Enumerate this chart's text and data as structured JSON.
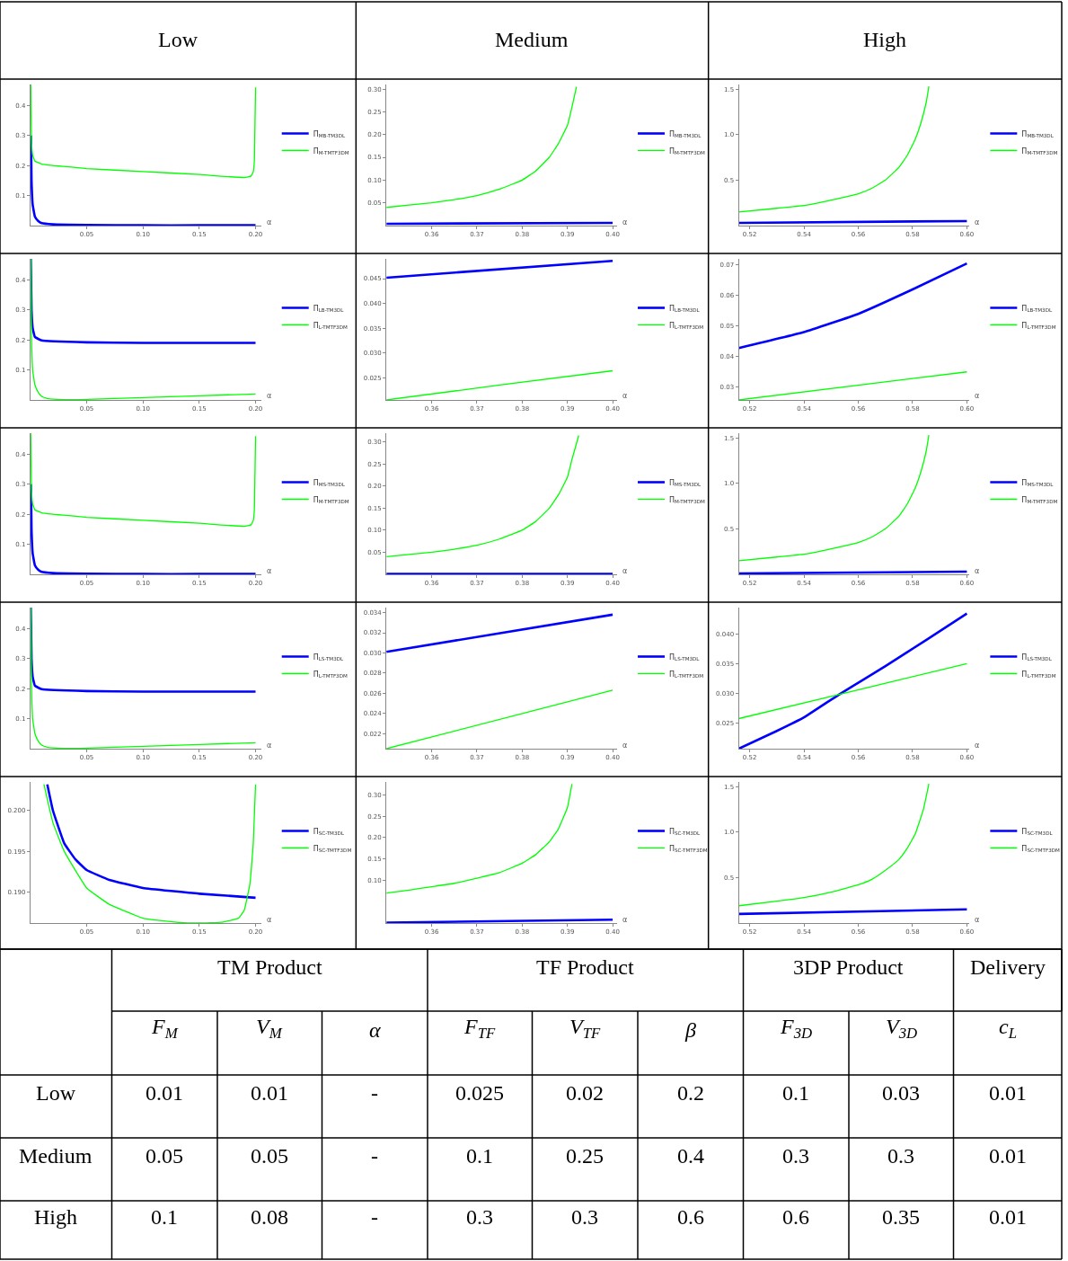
{
  "chart_data": [
    {
      "type": "line",
      "title": "Low",
      "xlabel": "α",
      "legend": "right",
      "xlim": [
        0,
        0.205
      ],
      "ylim": [
        0,
        0.47
      ],
      "xticks": [
        0.05,
        {
          "value": 0.1,
          "label": "0.10"
        },
        0.15,
        {
          "value": 0.2,
          "label": "0.20"
        }
      ],
      "yticks": [
        0.1,
        0.2,
        0.3,
        0.4
      ],
      "series": [
        {
          "name": "Π$_{MB-TM3DL}$",
          "color": "#0000ff",
          "x": [
            0.0005,
            0.001,
            0.002,
            0.004,
            0.007,
            0.01,
            0.02,
            0.05,
            0.1,
            0.15,
            0.2
          ],
          "values": [
            0.3,
            0.15,
            0.07,
            0.03,
            0.015,
            0.008,
            0.004,
            0.002,
            0.001,
            0.001,
            0.001
          ]
        },
        {
          "name": "Π$_{M-TMTF3DM}$",
          "color": "#00ff00",
          "x": [
            0.0003,
            0.001,
            0.002,
            0.004,
            0.01,
            0.05,
            0.1,
            0.15,
            0.19,
            0.196,
            0.198,
            0.199,
            0.2
          ],
          "values": [
            0.47,
            0.28,
            0.235,
            0.215,
            0.205,
            0.19,
            0.18,
            0.17,
            0.16,
            0.165,
            0.18,
            0.22,
            0.46
          ]
        }
      ]
    },
    {
      "type": "line",
      "title": "Medium",
      "xlabel": "α",
      "legend": "right",
      "xlim": [
        0.35,
        0.401
      ],
      "ylim": [
        0,
        0.31
      ],
      "xticks": [
        0.36,
        0.37,
        0.38,
        0.39,
        {
          "value": 0.4,
          "label": "0.40"
        }
      ],
      "yticks": [
        0.05,
        {
          "value": 0.1,
          "label": "0.10"
        },
        0.15,
        {
          "value": 0.2,
          "label": "0.20"
        },
        0.25,
        {
          "value": 0.3,
          "label": "0.30"
        }
      ],
      "series": [
        {
          "name": "Π$_{MB-TM3DL}$",
          "color": "#0000ff",
          "x": [
            0.35,
            0.4
          ],
          "values": [
            0.004,
            0.006
          ]
        },
        {
          "name": "Π$_{M-TMTF3DM}$",
          "color": "#00ff00",
          "x": [
            0.35,
            0.355,
            0.36,
            0.365,
            0.37,
            0.375,
            0.38,
            0.383,
            0.386,
            0.388,
            0.39,
            0.391,
            0.392
          ],
          "values": [
            0.04,
            0.045,
            0.05,
            0.057,
            0.066,
            0.08,
            0.1,
            0.12,
            0.15,
            0.18,
            0.22,
            0.26,
            0.305
          ]
        }
      ]
    },
    {
      "type": "line",
      "title": "High",
      "xlabel": "α",
      "legend": "right",
      "xlim": [
        0.516,
        0.601
      ],
      "ylim": [
        0,
        1.55
      ],
      "xticks": [
        0.52,
        0.54,
        0.56,
        0.58,
        {
          "value": 0.6,
          "label": "0.60"
        }
      ],
      "yticks": [
        0.5,
        {
          "value": 1,
          "label": "1.0"
        },
        1.5
      ],
      "series": [
        {
          "name": "Π$_{MB-TM3DL}$",
          "color": "#0000ff",
          "x": [
            0.516,
            0.6
          ],
          "values": [
            0.03,
            0.05
          ]
        },
        {
          "name": "Π$_{M-TMTF3DM}$",
          "color": "#00ff00",
          "x": [
            0.516,
            0.53,
            0.54,
            0.55,
            0.56,
            0.565,
            0.57,
            0.575,
            0.578,
            0.581,
            0.583,
            0.585,
            0.586
          ],
          "values": [
            0.15,
            0.19,
            0.22,
            0.28,
            0.35,
            0.41,
            0.5,
            0.64,
            0.77,
            0.95,
            1.12,
            1.35,
            1.53
          ]
        }
      ]
    },
    {
      "type": "line",
      "xlabel": "α",
      "legend": "right",
      "xlim": [
        0,
        0.205
      ],
      "ylim": [
        0,
        0.47
      ],
      "xticks": [
        0.05,
        {
          "value": 0.1,
          "label": "0.10"
        },
        0.15,
        {
          "value": 0.2,
          "label": "0.20"
        }
      ],
      "yticks": [
        0.1,
        0.2,
        0.3,
        0.4
      ],
      "series": [
        {
          "name": "Π$_{LB-TM3DL}$",
          "color": "#0000ff",
          "x": [
            0.0003,
            0.001,
            0.002,
            0.004,
            0.01,
            0.05,
            0.1,
            0.15,
            0.2
          ],
          "values": [
            0.47,
            0.3,
            0.24,
            0.21,
            0.198,
            0.192,
            0.19,
            0.19,
            0.19
          ]
        },
        {
          "name": "Π$_{L-TMTF3DM}$",
          "color": "#00ff00",
          "x": [
            0.0003,
            0.001,
            0.002,
            0.004,
            0.007,
            0.01,
            0.015,
            0.03,
            0.05,
            0.1,
            0.15,
            0.2
          ],
          "values": [
            0.47,
            0.2,
            0.1,
            0.05,
            0.025,
            0.012,
            0.005,
            0.001,
            0.002,
            0.008,
            0.014,
            0.02
          ]
        }
      ]
    },
    {
      "type": "line",
      "xlabel": "α",
      "legend": "right",
      "xlim": [
        0.35,
        0.401
      ],
      "ylim": [
        0.0205,
        0.049
      ],
      "xticks": [
        0.36,
        0.37,
        0.38,
        0.39,
        {
          "value": 0.4,
          "label": "0.40"
        }
      ],
      "yticks": [
        0.025,
        {
          "value": 0.03,
          "label": "0.030"
        },
        0.035,
        {
          "value": 0.04,
          "label": "0.040"
        },
        0.045
      ],
      "series": [
        {
          "name": "Π$_{LB-TM3DL}$",
          "color": "#0000ff",
          "x": [
            0.35,
            0.4
          ],
          "values": [
            0.0452,
            0.0486
          ]
        },
        {
          "name": "Π$_{L-TMTF3DM}$",
          "color": "#00ff00",
          "x": [
            0.35,
            0.375,
            0.4
          ],
          "values": [
            0.0205,
            0.0235,
            0.0264
          ]
        }
      ]
    },
    {
      "type": "line",
      "xlabel": "α",
      "legend": "right",
      "xlim": [
        0.516,
        0.601
      ],
      "ylim": [
        0.0258,
        0.072
      ],
      "xticks": [
        0.52,
        0.54,
        0.56,
        0.58,
        {
          "value": 0.6,
          "label": "0.60"
        }
      ],
      "yticks": [
        0.03,
        0.04,
        0.05,
        0.06,
        0.07
      ],
      "series": [
        {
          "name": "Π$_{LB-TM3DL}$",
          "color": "#0000ff",
          "x": [
            0.516,
            0.54,
            0.56,
            0.58,
            0.6
          ],
          "values": [
            0.0428,
            0.048,
            0.054,
            0.062,
            0.0705
          ]
        },
        {
          "name": "Π$_{L-TMTF3DM}$",
          "color": "#00ff00",
          "x": [
            0.516,
            0.6
          ],
          "values": [
            0.0258,
            0.035
          ]
        }
      ]
    },
    {
      "type": "line",
      "xlabel": "α",
      "legend": "right",
      "xlim": [
        0,
        0.205
      ],
      "ylim": [
        0,
        0.47
      ],
      "xticks": [
        0.05,
        {
          "value": 0.1,
          "label": "0.10"
        },
        0.15,
        {
          "value": 0.2,
          "label": "0.20"
        }
      ],
      "yticks": [
        0.1,
        0.2,
        0.3,
        0.4
      ],
      "series": [
        {
          "name": "Π$_{MS-TM3DL}$",
          "color": "#0000ff",
          "x": [
            0.0005,
            0.001,
            0.002,
            0.004,
            0.007,
            0.01,
            0.02,
            0.05,
            0.1,
            0.15,
            0.2
          ],
          "values": [
            0.3,
            0.15,
            0.07,
            0.03,
            0.015,
            0.008,
            0.004,
            0.002,
            0.001,
            0.001,
            0.001
          ]
        },
        {
          "name": "Π$_{M-TMTF3DM}$",
          "color": "#00ff00",
          "x": [
            0.0003,
            0.001,
            0.002,
            0.004,
            0.01,
            0.05,
            0.1,
            0.15,
            0.19,
            0.196,
            0.198,
            0.199,
            0.2
          ],
          "values": [
            0.47,
            0.28,
            0.235,
            0.215,
            0.205,
            0.19,
            0.18,
            0.17,
            0.16,
            0.165,
            0.18,
            0.22,
            0.46
          ]
        }
      ]
    },
    {
      "type": "line",
      "xlabel": "α",
      "legend": "right",
      "xlim": [
        0.35,
        0.401
      ],
      "ylim": [
        0,
        0.32
      ],
      "xticks": [
        0.36,
        0.37,
        0.38,
        0.39,
        {
          "value": 0.4,
          "label": "0.40"
        }
      ],
      "yticks": [
        0.05,
        {
          "value": 0.1,
          "label": "0.10"
        },
        0.15,
        {
          "value": 0.2,
          "label": "0.20"
        },
        0.25,
        {
          "value": 0.3,
          "label": "0.30"
        }
      ],
      "series": [
        {
          "name": "Π$_{MS-TM3DL}$",
          "color": "#0000ff",
          "x": [
            0.35,
            0.4
          ],
          "values": [
            0.001,
            0.001
          ]
        },
        {
          "name": "Π$_{M-TMTF3DM}$",
          "color": "#00ff00",
          "x": [
            0.35,
            0.355,
            0.36,
            0.365,
            0.37,
            0.375,
            0.38,
            0.383,
            0.386,
            0.388,
            0.39,
            0.391,
            0.3925
          ],
          "values": [
            0.04,
            0.045,
            0.05,
            0.057,
            0.066,
            0.08,
            0.1,
            0.12,
            0.15,
            0.18,
            0.22,
            0.26,
            0.315
          ]
        }
      ]
    },
    {
      "type": "line",
      "xlabel": "α",
      "legend": "right",
      "xlim": [
        0.516,
        0.601
      ],
      "ylim": [
        0,
        1.55
      ],
      "xticks": [
        0.52,
        0.54,
        0.56,
        0.58,
        {
          "value": 0.6,
          "label": "0.60"
        }
      ],
      "yticks": [
        0.5,
        {
          "value": 1,
          "label": "1.0"
        },
        1.5
      ],
      "series": [
        {
          "name": "Π$_{MS-TM3DL}$",
          "color": "#0000ff",
          "x": [
            0.516,
            0.6
          ],
          "values": [
            0.01,
            0.03
          ]
        },
        {
          "name": "Π$_{M-TMTF3DM}$",
          "color": "#00ff00",
          "x": [
            0.516,
            0.53,
            0.54,
            0.55,
            0.56,
            0.565,
            0.57,
            0.575,
            0.578,
            0.581,
            0.583,
            0.585,
            0.586
          ],
          "values": [
            0.15,
            0.19,
            0.22,
            0.28,
            0.35,
            0.41,
            0.5,
            0.64,
            0.77,
            0.95,
            1.12,
            1.35,
            1.53
          ]
        }
      ]
    },
    {
      "type": "line",
      "xlabel": "α",
      "legend": "right",
      "xlim": [
        0,
        0.205
      ],
      "ylim": [
        0,
        0.47
      ],
      "xticks": [
        0.05,
        {
          "value": 0.1,
          "label": "0.10"
        },
        0.15,
        {
          "value": 0.2,
          "label": "0.20"
        }
      ],
      "yticks": [
        0.1,
        0.2,
        0.3,
        0.4
      ],
      "series": [
        {
          "name": "Π$_{LS-TM3DL}$",
          "color": "#0000ff",
          "x": [
            0.0003,
            0.001,
            0.002,
            0.004,
            0.01,
            0.05,
            0.1,
            0.15,
            0.2
          ],
          "values": [
            0.47,
            0.3,
            0.24,
            0.21,
            0.198,
            0.192,
            0.19,
            0.19,
            0.19
          ]
        },
        {
          "name": "Π$_{L-TMTF3DM}$",
          "color": "#00ff00",
          "x": [
            0.0003,
            0.001,
            0.002,
            0.004,
            0.007,
            0.01,
            0.015,
            0.03,
            0.05,
            0.1,
            0.15,
            0.2
          ],
          "values": [
            0.47,
            0.2,
            0.1,
            0.05,
            0.025,
            0.012,
            0.005,
            0.001,
            0.002,
            0.008,
            0.014,
            0.02
          ]
        }
      ]
    },
    {
      "type": "line",
      "xlabel": "α",
      "legend": "right",
      "xlim": [
        0.35,
        0.401
      ],
      "ylim": [
        0.0205,
        0.0345
      ],
      "xticks": [
        0.36,
        0.37,
        0.38,
        0.39,
        {
          "value": 0.4,
          "label": "0.40"
        }
      ],
      "yticks": [
        0.022,
        0.024,
        0.026,
        0.028,
        {
          "value": 0.03,
          "label": "0.030"
        },
        0.032,
        0.034
      ],
      "series": [
        {
          "name": "Π$_{LS-TM3DL}$",
          "color": "#0000ff",
          "x": [
            0.35,
            0.4
          ],
          "values": [
            0.0301,
            0.0338
          ]
        },
        {
          "name": "Π$_{L-TMTF3DM}$",
          "color": "#00ff00",
          "x": [
            0.35,
            0.4
          ],
          "values": [
            0.0205,
            0.0263
          ]
        }
      ]
    },
    {
      "type": "line",
      "xlabel": "α",
      "legend": "right",
      "xlim": [
        0.516,
        0.601
      ],
      "ylim": [
        0.0206,
        0.0445
      ],
      "xticks": [
        0.52,
        0.54,
        0.56,
        0.58,
        {
          "value": 0.6,
          "label": "0.60"
        }
      ],
      "yticks": [
        0.025,
        {
          "value": 0.03,
          "label": "0.030"
        },
        0.035,
        {
          "value": 0.04,
          "label": "0.040"
        }
      ],
      "series": [
        {
          "name": "Π$_{LS-TM3DL}$",
          "color": "#0000ff",
          "x": [
            0.516,
            0.53,
            0.54,
            0.553,
            0.57,
            0.585,
            0.6
          ],
          "values": [
            0.0206,
            0.0236,
            0.0259,
            0.0298,
            0.0346,
            0.039,
            0.0435
          ]
        },
        {
          "name": "Π$_{L-TMTF3DM}$",
          "color": "#00ff00",
          "x": [
            0.516,
            0.553,
            0.6
          ],
          "values": [
            0.0257,
            0.0298,
            0.035
          ]
        }
      ]
    },
    {
      "type": "line",
      "xlabel": "α",
      "legend": "right",
      "xlim": [
        0,
        0.205
      ],
      "ylim": [
        0.1862,
        0.2035
      ],
      "xticks": [
        0.05,
        {
          "value": 0.1,
          "label": "0.10"
        },
        0.15,
        {
          "value": 0.2,
          "label": "0.20"
        }
      ],
      "yticks": [
        {
          "value": 0.19,
          "label": "0.190"
        },
        0.195,
        {
          "value": 0.2,
          "label": "0.200"
        }
      ],
      "series": [
        {
          "name": "Π$_{SC-TM3DL}$",
          "color": "#0000ff",
          "x": [
            0.015,
            0.02,
            0.03,
            0.04,
            0.05,
            0.07,
            0.1,
            0.15,
            0.2
          ],
          "values": [
            0.2032,
            0.2,
            0.196,
            0.194,
            0.1927,
            0.1915,
            0.1905,
            0.1898,
            0.1893
          ]
        },
        {
          "name": "Π$_{SC-TMTF3DM}$",
          "color": "#00ff00",
          "x": [
            0.012,
            0.02,
            0.03,
            0.05,
            0.07,
            0.1,
            0.13,
            0.15,
            0.17,
            0.185,
            0.19,
            0.195,
            0.198,
            0.2
          ],
          "values": [
            0.2032,
            0.1985,
            0.195,
            0.1905,
            0.1885,
            0.1868,
            0.1863,
            0.1862,
            0.1863,
            0.1868,
            0.1878,
            0.191,
            0.196,
            0.2032
          ]
        }
      ]
    },
    {
      "type": "line",
      "xlabel": "α",
      "legend": "right",
      "xlim": [
        0.35,
        0.401
      ],
      "ylim": [
        0,
        0.33
      ],
      "xticks": [
        0.36,
        0.37,
        0.38,
        0.39,
        {
          "value": 0.4,
          "label": "0.40"
        }
      ],
      "yticks": [
        {
          "value": 0.1,
          "label": "0.10"
        },
        0.15,
        {
          "value": 0.2,
          "label": "0.20"
        },
        0.25,
        {
          "value": 0.3,
          "label": "0.30"
        }
      ],
      "series": [
        {
          "name": "Π$_{SC-TM3DL}$",
          "color": "#0000ff",
          "x": [
            0.35,
            0.4
          ],
          "values": [
            0.001,
            0.008
          ]
        },
        {
          "name": "Π$_{SC-TMTF3DM}$",
          "color": "#00ff00",
          "x": [
            0.35,
            0.355,
            0.36,
            0.365,
            0.37,
            0.375,
            0.38,
            0.383,
            0.386,
            0.388,
            0.39,
            0.391
          ],
          "values": [
            0.07,
            0.077,
            0.085,
            0.093,
            0.105,
            0.118,
            0.14,
            0.16,
            0.19,
            0.22,
            0.27,
            0.325
          ]
        }
      ]
    },
    {
      "type": "line",
      "xlabel": "α",
      "legend": "right",
      "xlim": [
        0.516,
        0.601
      ],
      "ylim": [
        0,
        1.55
      ],
      "xticks": [
        0.52,
        0.54,
        0.56,
        0.58,
        {
          "value": 0.6,
          "label": "0.60"
        }
      ],
      "yticks": [
        0.5,
        {
          "value": 1,
          "label": "1.0"
        },
        1.5
      ],
      "series": [
        {
          "name": "Π$_{SC-TM3DL}$",
          "color": "#0000ff",
          "x": [
            0.516,
            0.6
          ],
          "values": [
            0.1,
            0.15
          ]
        },
        {
          "name": "Π$_{SC-TMTF3DM}$",
          "color": "#00ff00",
          "x": [
            0.516,
            0.53,
            0.54,
            0.55,
            0.56,
            0.565,
            0.57,
            0.575,
            0.578,
            0.581,
            0.584,
            0.586
          ],
          "values": [
            0.19,
            0.24,
            0.28,
            0.34,
            0.42,
            0.48,
            0.58,
            0.7,
            0.82,
            0.98,
            1.25,
            1.53
          ]
        }
      ]
    },
    {
      "type": "other",
      "annotations": [
        "TM Product",
        "TF Product",
        "3DP Product",
        "Delivery"
      ],
      "categories": [
        "F$_{M}$",
        "V$_{M}$",
        "α",
        "F$_{TF}$",
        "V$_{TF}$",
        "β",
        "F$_{3D}$",
        "V$_{3D}$",
        "c$_{L}$"
      ],
      "y_categories": [
        "Low",
        "Medium",
        "High"
      ],
      "cell_labels": [
        [
          "0.01",
          "0.01",
          "-",
          "0.025",
          "0.02",
          "0.2",
          "0.1",
          "0.03",
          "0.01"
        ],
        [
          "0.05",
          "0.05",
          "-",
          "0.1",
          "0.25",
          "0.4",
          "0.3",
          "0.3",
          "0.01"
        ],
        [
          "0.1",
          "0.08",
          "-",
          "0.3",
          "0.3",
          "0.6",
          "0.6",
          "0.35",
          "0.01"
        ]
      ]
    }
  ]
}
